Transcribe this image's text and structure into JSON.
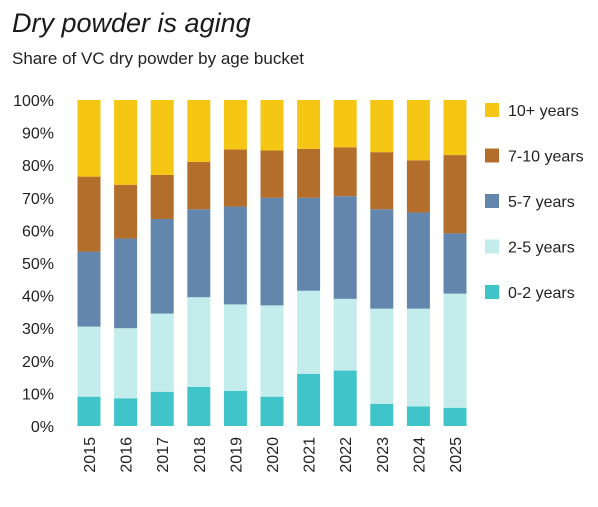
{
  "chart_data": {
    "type": "bar",
    "stacked": true,
    "title": "Dry powder is aging",
    "subtitle": "Share of VC dry powder by age bucket",
    "categories": [
      "2015",
      "2016",
      "2017",
      "2018",
      "2019",
      "2020",
      "2021",
      "2022",
      "2023",
      "2024",
      "2025"
    ],
    "ylim": [
      0,
      100
    ],
    "y_ticks": [
      "0%",
      "10%",
      "20%",
      "30%",
      "40%",
      "50%",
      "60%",
      "70%",
      "80%",
      "90%",
      "100%"
    ],
    "grid": false,
    "legend_position": "right",
    "series": [
      {
        "name": "0-2 years",
        "color": "#3fc5c9",
        "values": [
          9,
          8.5,
          10.5,
          12,
          10.8,
          9,
          16,
          17,
          6.8,
          6,
          5.6
        ]
      },
      {
        "name": "2-5 years",
        "color": "#c3ecec",
        "values": [
          21.5,
          21.5,
          24,
          27.5,
          26.5,
          28,
          25.5,
          22,
          29.2,
          30,
          35
        ]
      },
      {
        "name": "5-7 years",
        "color": "#6286ac",
        "values": [
          23,
          27.5,
          29,
          27,
          30,
          33,
          28.5,
          31.5,
          30.5,
          29.5,
          18.5
        ]
      },
      {
        "name": "7-10 years",
        "color": "#b36e2c",
        "values": [
          23,
          16.5,
          13.5,
          14.5,
          17.5,
          14.5,
          15,
          15,
          17.5,
          16,
          24
        ]
      },
      {
        "name": "10+ years",
        "color": "#f5c613",
        "values": [
          23.5,
          26,
          23,
          19,
          15.2,
          15.5,
          15,
          14.5,
          16,
          18.5,
          16.9
        ]
      }
    ]
  }
}
